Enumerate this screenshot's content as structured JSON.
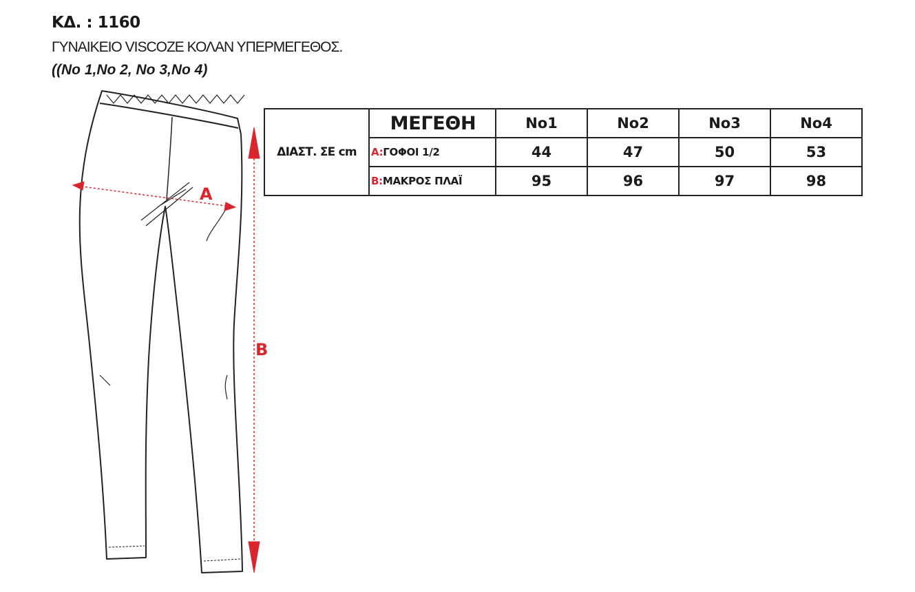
{
  "header": {
    "code": "ΚΔ. : 1160",
    "title": "ΓΥΝΑΙΚΕΙΟ VISCOZE ΚΟΛΑΝ ΥΠΕΡΜΕΓΕΘΟΣ.",
    "sizes_note": "((No 1,No 2, No 3,No 4)"
  },
  "table": {
    "dim_label": "ΔΙΑΣΤ. ΣΕ cm",
    "sizes_label": "ΜΕΓΕΘΗ",
    "sizes": [
      "No1",
      "No2",
      "No3",
      "No4"
    ],
    "rows": [
      {
        "key": "A:",
        "name": "ΓΟΦΟΙ 1/2",
        "values": [
          "44",
          "47",
          "50",
          "53"
        ]
      },
      {
        "key": "B:",
        "name": "ΜΑΚΡΟΣ ΠΛΑΪ",
        "values": [
          "95",
          "96",
          "97",
          "98"
        ]
      }
    ]
  },
  "drawing": {
    "label_a": "A",
    "label_b": "B",
    "accent_color": "#d9262c"
  }
}
